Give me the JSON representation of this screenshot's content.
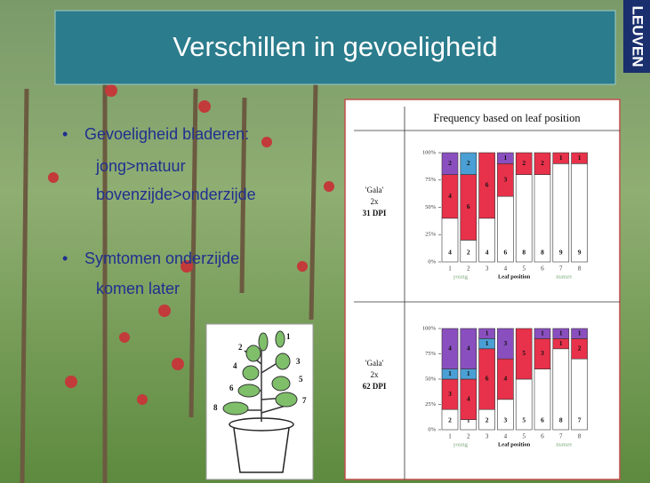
{
  "title": "Verschillen in gevoeligheid",
  "logo": "LEUVEN",
  "bullets": [
    {
      "text": "Gevoeligheid bladeren:",
      "sub": [
        "jong>matuur",
        "bovenzijde>onderzijde"
      ]
    },
    {
      "text": "Symtomen onderzijde",
      "sub": [
        "komen later"
      ]
    }
  ],
  "plant_labels": [
    "1",
    "2",
    "3",
    "4",
    "5",
    "6",
    "7",
    "8"
  ],
  "table_header": "Frequency based on leaf position",
  "chart_data": [
    {
      "type": "stacked-bar",
      "row_label": [
        "'Gala'",
        "2x",
        "31 DPI"
      ],
      "categories": [
        "1",
        "2",
        "3",
        "4",
        "5",
        "6",
        "7",
        "8"
      ],
      "x_notes": [
        "young",
        "Leaf position",
        "mature"
      ],
      "ylim": [
        0,
        100
      ],
      "yticks": [
        {
          "value": 0,
          "label": "0%"
        },
        {
          "value": 25,
          "label": "25%"
        },
        {
          "value": 50,
          "label": "50%"
        },
        {
          "value": 75,
          "label": "75%"
        },
        {
          "value": 100,
          "label": "100%"
        }
      ],
      "series": [
        {
          "color": "#ffffff",
          "values": [
            40,
            20,
            40,
            60,
            80,
            80,
            90,
            90
          ],
          "value_labels": [
            "4",
            "2",
            "4",
            "6",
            "8",
            "8",
            "9",
            "9"
          ]
        },
        {
          "color": "#e8314a",
          "values": [
            40,
            60,
            60,
            30,
            20,
            20,
            10,
            10
          ],
          "value_labels": [
            "4",
            "6",
            "6",
            "3",
            "2",
            "2",
            "1",
            "1"
          ]
        },
        {
          "color": "#4a9fd4",
          "values": [
            null,
            20,
            null,
            null,
            null,
            null,
            null,
            null
          ],
          "value_labels": [
            null,
            "2",
            null,
            null,
            null,
            null,
            null,
            null
          ]
        },
        {
          "color": "#8a4fbf",
          "values": [
            20,
            null,
            null,
            10,
            null,
            null,
            null,
            null
          ],
          "value_labels": [
            "2",
            null,
            null,
            "1",
            null,
            null,
            null,
            null
          ]
        }
      ]
    },
    {
      "type": "stacked-bar",
      "row_label": [
        "'Gala'",
        "2x",
        "62 DPI"
      ],
      "categories": [
        "1",
        "2",
        "3",
        "4",
        "5",
        "6",
        "7",
        "8"
      ],
      "x_notes": [
        "young",
        "Leaf position",
        "mature"
      ],
      "ylim": [
        0,
        100
      ],
      "yticks": [
        {
          "value": 0,
          "label": "0%"
        },
        {
          "value": 25,
          "label": "25%"
        },
        {
          "value": 50,
          "label": "50%"
        },
        {
          "value": 75,
          "label": "75%"
        },
        {
          "value": 100,
          "label": "100%"
        }
      ],
      "series": [
        {
          "color": "#ffffff",
          "values": [
            20,
            10,
            20,
            30,
            50,
            60,
            80,
            70
          ],
          "value_labels": [
            "2",
            "1",
            "2",
            "3",
            "5",
            "6",
            "8",
            "7"
          ]
        },
        {
          "color": "#e8314a",
          "values": [
            30,
            40,
            60,
            40,
            50,
            30,
            10,
            20
          ],
          "value_labels": [
            "3",
            "4",
            "6",
            "4",
            "5",
            "3",
            "1",
            "2"
          ]
        },
        {
          "color": "#4a9fd4",
          "values": [
            10,
            10,
            10,
            null,
            null,
            null,
            null,
            null
          ],
          "value_labels": [
            "1",
            "1",
            "1",
            null,
            null,
            null,
            null,
            null
          ]
        },
        {
          "color": "#8a4fbf",
          "values": [
            40,
            40,
            10,
            30,
            null,
            10,
            10,
            10
          ],
          "value_labels": [
            "4",
            "4",
            "1",
            "3",
            null,
            "1",
            "1",
            "1"
          ]
        }
      ]
    }
  ]
}
